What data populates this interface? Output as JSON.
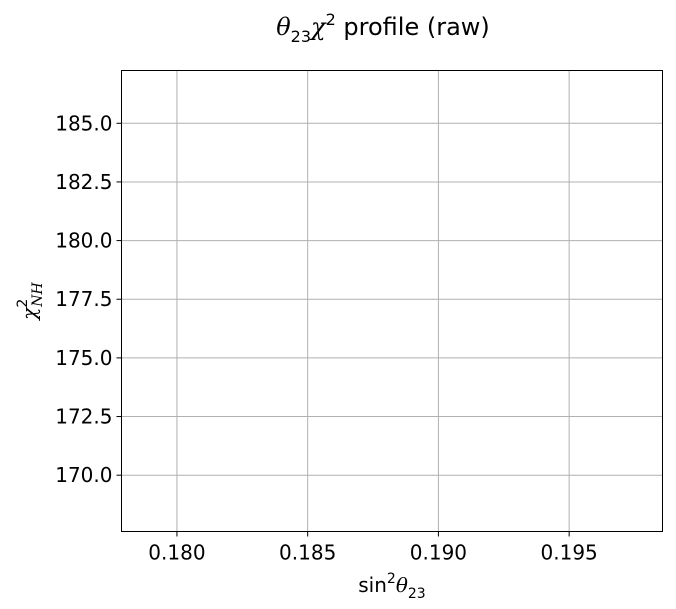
{
  "chart_data": {
    "type": "line",
    "title": {
      "theta": "θ",
      "theta_sub": "23",
      "chi": "χ",
      "chi_sup": "2",
      "rest": " profile (raw)"
    },
    "xlabel": {
      "func": "sin",
      "sup": "2",
      "theta": "θ",
      "sub": "23"
    },
    "ylabel": {
      "chi": "χ",
      "sup": "2",
      "sub": "NH"
    },
    "xlim": [
      0.17788,
      0.19857
    ],
    "ylim": [
      167.6,
      187.25
    ],
    "xticks": [
      0.18,
      0.185,
      0.19,
      0.195
    ],
    "xtick_labels": [
      "0.180",
      "0.185",
      "0.190",
      "0.195"
    ],
    "yticks": [
      170.0,
      172.5,
      175.0,
      177.5,
      180.0,
      182.5,
      185.0
    ],
    "ytick_labels": [
      "170.0",
      "172.5",
      "175.0",
      "177.5",
      "180.0",
      "182.5",
      "185.0"
    ],
    "grid": true,
    "series": [],
    "colors": {
      "grid": "#b0b0b0",
      "axes": "#000000"
    }
  }
}
